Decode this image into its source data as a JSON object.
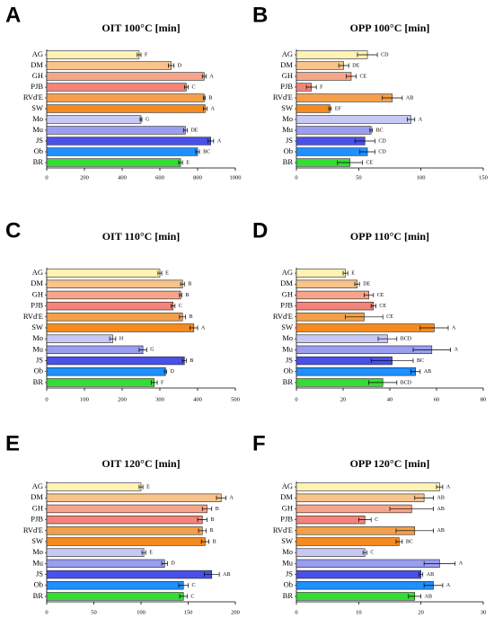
{
  "chart_data": [
    {
      "type": "bar",
      "panel": "A",
      "title": "OIT 100°C [min]",
      "categories": [
        "AG",
        "DM",
        "GH",
        "PJB",
        "RVd'E",
        "SW",
        "Mo",
        "Mu",
        "JS",
        "Ob",
        "BR"
      ],
      "colors": [
        "#fff2b3",
        "#f8c48c",
        "#f7a58a",
        "#f4847a",
        "#f4a04a",
        "#f58a1f",
        "#c7c9f4",
        "#9a9ef0",
        "#4a50e8",
        "#1e90ff",
        "#33dd33"
      ],
      "values": [
        490,
        660,
        835,
        740,
        835,
        840,
        500,
        735,
        870,
        800,
        710
      ],
      "errors": [
        10,
        15,
        10,
        10,
        5,
        10,
        5,
        10,
        15,
        10,
        10
      ],
      "annotations": [
        "F",
        "D",
        "A",
        "C",
        "B",
        "A",
        "G",
        "DE",
        "A",
        "BC",
        "E"
      ],
      "xlim": [
        0,
        1000
      ],
      "xticks": [
        0,
        200,
        400,
        600,
        800,
        1000
      ]
    },
    {
      "type": "bar",
      "panel": "B",
      "title": "OPP 100°C [min]",
      "categories": [
        "AG",
        "DM",
        "GH",
        "PJB",
        "RVd'E",
        "SW",
        "Mo",
        "Mu",
        "JS",
        "Ob",
        "BR"
      ],
      "colors": [
        "#fff2b3",
        "#f8c48c",
        "#f7a58a",
        "#f4847a",
        "#f4a04a",
        "#f58a1f",
        "#c7c9f4",
        "#9a9ef0",
        "#4a50e8",
        "#1e90ff",
        "#33dd33"
      ],
      "values": [
        57,
        38,
        44,
        12,
        77,
        27,
        92,
        60,
        55,
        57,
        43
      ],
      "errors": [
        8,
        4,
        4,
        4,
        8,
        1,
        3,
        1,
        8,
        6,
        10
      ],
      "annotations": [
        "CD",
        "DE",
        "CE",
        "F",
        "AB",
        "EF",
        "A",
        "BC",
        "CD",
        "CD",
        "CE"
      ],
      "xlim": [
        0,
        150
      ],
      "xticks": [
        0,
        50,
        100,
        150
      ]
    },
    {
      "type": "bar",
      "panel": "C",
      "title": "OIT 110°C [min]",
      "categories": [
        "AG",
        "DM",
        "GH",
        "PJB",
        "RVd'E",
        "SW",
        "Mo",
        "Mu",
        "JS",
        "Ob",
        "BR"
      ],
      "colors": [
        "#fff2b3",
        "#f8c48c",
        "#f7a58a",
        "#f4847a",
        "#f4a04a",
        "#f58a1f",
        "#c7c9f4",
        "#9a9ef0",
        "#4a50e8",
        "#1e90ff",
        "#33dd33"
      ],
      "values": [
        300,
        360,
        355,
        335,
        360,
        390,
        175,
        255,
        365,
        315,
        285
      ],
      "errors": [
        5,
        5,
        3,
        5,
        8,
        10,
        8,
        10,
        5,
        3,
        8
      ],
      "annotations": [
        "E",
        "B",
        "B",
        "C",
        "B",
        "A",
        "H",
        "G",
        "B",
        "D",
        "F"
      ],
      "xlim": [
        0,
        500
      ],
      "xticks": [
        0,
        100,
        200,
        300,
        400,
        500
      ]
    },
    {
      "type": "bar",
      "panel": "D",
      "title": "OPP 110°C [min]",
      "categories": [
        "AG",
        "DM",
        "GH",
        "PJB",
        "RVd'E",
        "SW",
        "Mo",
        "Mu",
        "JS",
        "Ob",
        "BR"
      ],
      "colors": [
        "#fff2b3",
        "#f8c48c",
        "#f7a58a",
        "#f4847a",
        "#f4a04a",
        "#f58a1f",
        "#c7c9f4",
        "#9a9ef0",
        "#4a50e8",
        "#1e90ff",
        "#33dd33"
      ],
      "values": [
        21,
        26,
        31,
        33,
        29,
        59,
        39,
        58,
        41,
        51,
        37
      ],
      "errors": [
        1,
        1,
        2,
        1,
        8,
        6,
        4,
        8,
        9,
        2,
        6
      ],
      "annotations": [
        "E",
        "DE",
        "CE",
        "CE",
        "CE",
        "A",
        "BCD",
        "A",
        "BC",
        "AB",
        "BCD"
      ],
      "xlim": [
        0,
        80
      ],
      "xticks": [
        0,
        20,
        40,
        60,
        80
      ]
    },
    {
      "type": "bar",
      "panel": "E",
      "title": "OIT 120°C [min]",
      "categories": [
        "AG",
        "DM",
        "GH",
        "PJB",
        "RVd'E",
        "SW",
        "Mo",
        "Mu",
        "JS",
        "Ob",
        "BR"
      ],
      "colors": [
        "#fff2b3",
        "#f8c48c",
        "#f7a58a",
        "#f4847a",
        "#f4a04a",
        "#f58a1f",
        "#c7c9f4",
        "#9a9ef0",
        "#4a50e8",
        "#1e90ff",
        "#33dd33"
      ],
      "values": [
        100,
        185,
        170,
        165,
        165,
        168,
        103,
        125,
        175,
        145,
        145
      ],
      "errors": [
        2,
        5,
        5,
        5,
        4,
        4,
        2,
        3,
        8,
        5,
        4
      ],
      "annotations": [
        "E",
        "A",
        "B",
        "B",
        "B",
        "B",
        "E",
        "D",
        "AB",
        "C",
        "C"
      ],
      "xlim": [
        0,
        200
      ],
      "xticks": [
        0,
        50,
        100,
        150,
        200
      ]
    },
    {
      "type": "bar",
      "panel": "F",
      "title": "OPP 120°C [min]",
      "categories": [
        "AG",
        "DM",
        "GH",
        "PJB",
        "RVd'E",
        "SW",
        "Mo",
        "Mu",
        "JS",
        "Ob",
        "BR"
      ],
      "colors": [
        "#fff2b3",
        "#f8c48c",
        "#f7a58a",
        "#f4847a",
        "#f4a04a",
        "#f58a1f",
        "#c7c9f4",
        "#9a9ef0",
        "#4a50e8",
        "#1e90ff",
        "#33dd33"
      ],
      "values": [
        23,
        20.5,
        18.5,
        11,
        19,
        16.5,
        11,
        23,
        20,
        22,
        19
      ],
      "errors": [
        0.5,
        1.5,
        3.5,
        1,
        3,
        0.5,
        0.3,
        2.5,
        0.3,
        1.5,
        1
      ],
      "annotations": [
        "A",
        "AB",
        "AB",
        "C",
        "AB",
        "BC",
        "C",
        "A",
        "AB",
        "A",
        "AB"
      ],
      "xlim": [
        0,
        30
      ],
      "xticks": [
        0,
        10,
        20,
        30
      ]
    }
  ]
}
